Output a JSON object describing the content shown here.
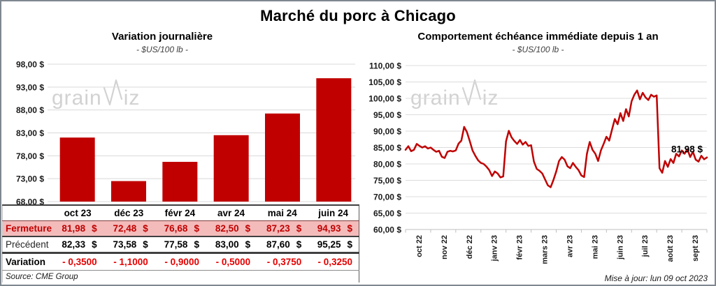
{
  "page_title": "Marché du porc à Chicago",
  "watermark": {
    "part1": "grain",
    "part2": "iz"
  },
  "left_panel": {
    "source_note": "Source: CME Group"
  },
  "right_panel": {
    "update_note": "Mise à jour: lun 09 oct 2023"
  },
  "chart_data": [
    {
      "id": "daily-variation-bar",
      "type": "bar",
      "title": "Variation journalière",
      "subtitle": "- $US/100 lb -",
      "categories": [
        "oct 23",
        "déc 23",
        "févr 24",
        "avr 24",
        "mai 24",
        "juin 24"
      ],
      "values": [
        81.98,
        72.48,
        76.68,
        82.5,
        87.23,
        94.93
      ],
      "ylim": [
        68,
        98
      ],
      "ytick_interval": 5,
      "ytick_labels": [
        "98,00 $",
        "93,00 $",
        "88,00 $",
        "83,00 $",
        "78,00 $",
        "73,00 $",
        "68,00 $"
      ],
      "bar_color": "#c00000",
      "grid": true,
      "legend": "none"
    },
    {
      "id": "front-month-line",
      "type": "line",
      "title": "Comportement échéance immédiate depuis 1 an",
      "subtitle": "- $US/100 lb -",
      "x_tick_labels": [
        "oct 22",
        "nov 22",
        "déc 22",
        "janv 23",
        "févr 23",
        "mars 23",
        "avr 23",
        "mai 23",
        "juin 23",
        "juil 23",
        "août 23",
        "sept 23"
      ],
      "ylim": [
        60,
        110
      ],
      "ytick_interval": 5,
      "ytick_labels": [
        "110,00 $",
        "105,00 $",
        "100,00 $",
        "95,00 $",
        "90,00 $",
        "85,00 $",
        "80,00 $",
        "75,00 $",
        "70,00 $",
        "65,00 $",
        "60,00 $"
      ],
      "line_color": "#c00000",
      "grid": true,
      "legend": "none",
      "annotation": {
        "text": "81,98 $",
        "value": 81.98
      },
      "values": [
        84.3,
        85.4,
        83.9,
        84.3,
        86.1,
        85.5,
        85.0,
        85.4,
        84.7,
        85.0,
        84.3,
        83.7,
        84.0,
        82.2,
        81.8,
        83.7,
        84.0,
        83.8,
        84.1,
        86.2,
        87.1,
        91.3,
        89.7,
        87.0,
        84.1,
        82.5,
        81.1,
        80.3,
        80.0,
        79.2,
        78.1,
        76.3,
        77.7,
        77.1,
        75.9,
        76.2,
        86.9,
        90.1,
        88.1,
        87.0,
        86.1,
        87.3,
        85.9,
        86.7,
        85.5,
        85.7,
        80.7,
        78.5,
        77.9,
        77.1,
        75.3,
        73.5,
        72.9,
        75.1,
        77.7,
        80.9,
        82.1,
        81.3,
        79.3,
        78.7,
        80.3,
        79.1,
        78.1,
        76.5,
        76.0,
        83.1,
        86.7,
        84.3,
        83.1,
        80.9,
        84.1,
        86.1,
        88.3,
        87.1,
        90.5,
        93.7,
        92.1,
        95.5,
        93.1,
        96.7,
        94.5,
        99.1,
        101.1,
        102.4,
        99.7,
        101.7,
        100.3,
        99.5,
        101.1,
        100.5,
        100.9,
        78.7,
        77.3,
        80.9,
        79.1,
        81.5,
        80.3,
        83.1,
        82.3,
        84.1,
        83.1,
        84.5,
        82.1,
        83.7,
        81.3,
        80.7,
        82.5,
        81.4,
        81.98
      ]
    },
    {
      "id": "price-table",
      "type": "table",
      "columns": [
        "oct 23",
        "déc 23",
        "févr 24",
        "avr 24",
        "mai 24",
        "juin 24"
      ],
      "rows": [
        {
          "label": "Fermeture",
          "values": [
            "81,98 $",
            "72,48 $",
            "76,68 $",
            "82,50 $",
            "87,23 $",
            "94,93 $"
          ]
        },
        {
          "label": "Précédent",
          "values": [
            "82,33 $",
            "73,58 $",
            "77,58 $",
            "83,00 $",
            "87,60 $",
            "95,25 $"
          ]
        },
        {
          "label": "Variation",
          "values": [
            "- 0,3500",
            "- 1,1000",
            "- 0,9000",
            "- 0,5000",
            "- 0,3750",
            "- 0,3250"
          ]
        }
      ]
    }
  ]
}
